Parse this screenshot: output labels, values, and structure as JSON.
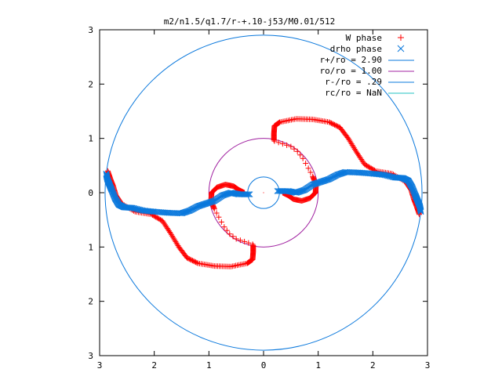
{
  "chart_data": {
    "type": "scatter",
    "title": "m2/n1.5/q1.7/r-+.10-j53/M0.01/512",
    "xlim": [
      -3,
      3
    ],
    "ylim": [
      -3,
      3
    ],
    "grid": false,
    "legend_position": "top-right",
    "x_tick_labels": [
      "3",
      "2",
      "1",
      "0",
      "1",
      "2",
      "3"
    ],
    "y_tick_labels": [
      "3",
      "2",
      "1",
      "0",
      "1",
      "2",
      "3"
    ],
    "x_tick_values": [
      -3,
      -2,
      -1,
      0,
      1,
      2,
      3
    ],
    "y_tick_values": [
      3,
      2,
      1,
      0,
      -1,
      -2,
      -3
    ],
    "series": [
      {
        "name": "W phase",
        "kind": "points",
        "marker": "+",
        "color": "#ff0000",
        "branches": [
          {
            "dense_from": 0,
            "points": [
              [
                0.19,
                0.97
              ],
              [
                0.19,
                1.09
              ],
              [
                0.2,
                1.23
              ],
              [
                0.3,
                1.3
              ],
              [
                0.6,
                1.36
              ],
              [
                0.9,
                1.35
              ],
              [
                1.2,
                1.3
              ],
              [
                1.4,
                1.2
              ],
              [
                1.55,
                1.0
              ],
              [
                1.7,
                0.75
              ],
              [
                1.85,
                0.52
              ],
              [
                2.05,
                0.4
              ],
              [
                2.35,
                0.35
              ],
              [
                2.6,
                0.2
              ],
              [
                2.7,
                0.05
              ],
              [
                2.75,
                -0.12
              ],
              [
                2.8,
                -0.25
              ],
              [
                2.85,
                -0.4
              ]
            ]
          },
          {
            "dense_from": 0,
            "points": [
              [
                -0.19,
                -0.97
              ],
              [
                -0.19,
                -1.09
              ],
              [
                -0.2,
                -1.23
              ],
              [
                -0.3,
                -1.3
              ],
              [
                -0.6,
                -1.36
              ],
              [
                -0.9,
                -1.35
              ],
              [
                -1.2,
                -1.3
              ],
              [
                -1.4,
                -1.2
              ],
              [
                -1.55,
                -1.0
              ],
              [
                -1.7,
                -0.75
              ],
              [
                -1.85,
                -0.52
              ],
              [
                -2.05,
                -0.4
              ],
              [
                -2.35,
                -0.35
              ],
              [
                -2.6,
                -0.2
              ],
              [
                -2.7,
                -0.05
              ],
              [
                -2.75,
                0.12
              ],
              [
                -2.8,
                0.25
              ],
              [
                -2.85,
                0.4
              ]
            ]
          },
          {
            "dense_from": 6,
            "points": [
              [
                0.2,
                0.95
              ],
              [
                0.35,
                0.9
              ],
              [
                0.5,
                0.85
              ],
              [
                0.62,
                0.76
              ],
              [
                0.72,
                0.63
              ],
              [
                0.82,
                0.45
              ],
              [
                0.9,
                0.3
              ],
              [
                0.96,
                0.14
              ],
              [
                0.95,
                0.0
              ],
              [
                0.85,
                -0.1
              ],
              [
                0.7,
                -0.15
              ],
              [
                0.55,
                -0.12
              ],
              [
                0.45,
                -0.05
              ],
              [
                0.35,
                0.0
              ]
            ]
          },
          {
            "dense_from": 6,
            "points": [
              [
                -0.2,
                -0.95
              ],
              [
                -0.35,
                -0.9
              ],
              [
                -0.5,
                -0.85
              ],
              [
                -0.62,
                -0.76
              ],
              [
                -0.72,
                -0.63
              ],
              [
                -0.82,
                -0.45
              ],
              [
                -0.9,
                -0.3
              ],
              [
                -0.96,
                -0.14
              ],
              [
                -0.95,
                0.0
              ],
              [
                -0.85,
                0.1
              ],
              [
                -0.7,
                0.15
              ],
              [
                -0.55,
                0.12
              ],
              [
                -0.45,
                0.05
              ],
              [
                -0.35,
                0.0
              ]
            ]
          }
        ]
      },
      {
        "name": "drho phase",
        "kind": "points",
        "marker": "x",
        "color": "#0a78dc",
        "branches": [
          {
            "dense_from": 0,
            "points": [
              [
                0.25,
                0.03
              ],
              [
                0.45,
                0.03
              ],
              [
                0.6,
                0.0
              ],
              [
                0.75,
                0.05
              ],
              [
                0.9,
                0.15
              ],
              [
                1.05,
                0.2
              ],
              [
                1.2,
                0.25
              ],
              [
                1.35,
                0.33
              ],
              [
                1.5,
                0.38
              ],
              [
                1.75,
                0.37
              ],
              [
                2.0,
                0.35
              ],
              [
                2.2,
                0.33
              ],
              [
                2.4,
                0.28
              ],
              [
                2.55,
                0.27
              ],
              [
                2.65,
                0.22
              ],
              [
                2.72,
                0.1
              ],
              [
                2.78,
                -0.05
              ],
              [
                2.82,
                -0.15
              ],
              [
                2.86,
                -0.25
              ],
              [
                2.88,
                -0.35
              ]
            ]
          },
          {
            "dense_from": 0,
            "points": [
              [
                -0.25,
                -0.03
              ],
              [
                -0.45,
                -0.03
              ],
              [
                -0.6,
                0.0
              ],
              [
                -0.75,
                -0.05
              ],
              [
                -0.9,
                -0.15
              ],
              [
                -1.05,
                -0.2
              ],
              [
                -1.2,
                -0.25
              ],
              [
                -1.35,
                -0.33
              ],
              [
                -1.5,
                -0.38
              ],
              [
                -1.75,
                -0.37
              ],
              [
                -2.0,
                -0.35
              ],
              [
                -2.2,
                -0.33
              ],
              [
                -2.4,
                -0.28
              ],
              [
                -2.55,
                -0.27
              ],
              [
                -2.65,
                -0.22
              ],
              [
                -2.72,
                -0.1
              ],
              [
                -2.78,
                0.05
              ],
              [
                -2.82,
                0.15
              ],
              [
                -2.86,
                0.25
              ],
              [
                -2.88,
                0.35
              ]
            ]
          }
        ]
      },
      {
        "name": "r+/ro = 2.90",
        "kind": "circle",
        "radius": 2.9,
        "color": "#0a78dc"
      },
      {
        "name": "ro/ro = 1.00",
        "kind": "circle",
        "radius": 1.0,
        "color": "#a020a0"
      },
      {
        "name": "r-/ro = .29",
        "kind": "circle",
        "radius": 0.29,
        "color": "#0a78dc"
      },
      {
        "name": "rc/ro = NaN",
        "kind": "circle",
        "radius": null,
        "color": "#20c0c0"
      }
    ]
  }
}
